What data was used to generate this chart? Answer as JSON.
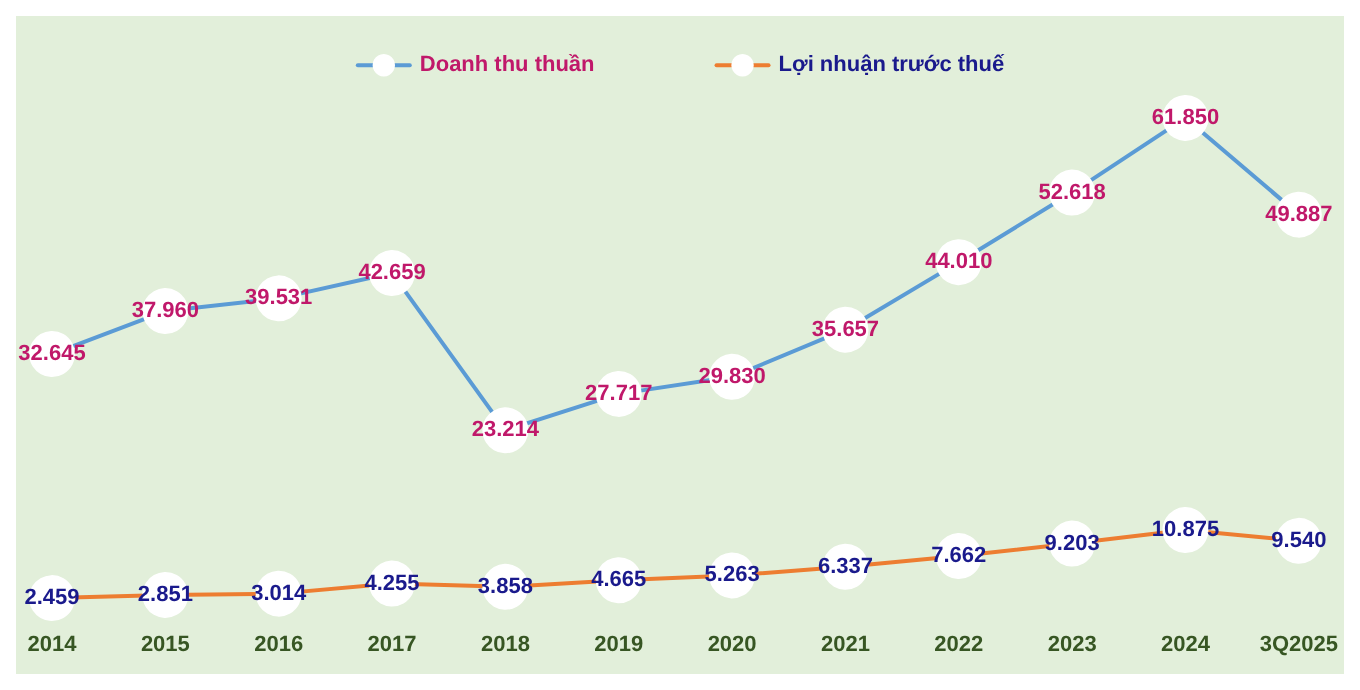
{
  "chart_data": {
    "type": "line",
    "categories": [
      "2014",
      "2015",
      "2016",
      "2017",
      "2018",
      "2019",
      "2020",
      "2021",
      "2022",
      "2023",
      "2024",
      "3Q2025"
    ],
    "series": [
      {
        "name": "Doanh thu thuần",
        "color": "#5b9bd5",
        "values": [
          32645,
          37960,
          39531,
          42659,
          23214,
          27717,
          29830,
          35657,
          44010,
          52618,
          61850,
          49887
        ],
        "value_labels": [
          "32.645",
          "37.960",
          "39.531",
          "42.659",
          "23.214",
          "27.717",
          "29.830",
          "35.657",
          "44.010",
          "52.618",
          "61.850",
          "49.887"
        ]
      },
      {
        "name": "Lợi nhuận trước thuế",
        "color": "#ed7d31",
        "values": [
          2459,
          2851,
          3014,
          4255,
          3858,
          4665,
          5263,
          6337,
          7662,
          9203,
          10875,
          9540
        ],
        "value_labels": [
          "2.459",
          "2.851",
          "3.014",
          "4.255",
          "3.858",
          "4.665",
          "5.263",
          "6.337",
          "7.662",
          "9.203",
          "10.875",
          "9.540"
        ]
      }
    ],
    "legend": "top",
    "grid": false,
    "marker": "circle",
    "line_style": "solid",
    "tick_labels": "x"
  }
}
